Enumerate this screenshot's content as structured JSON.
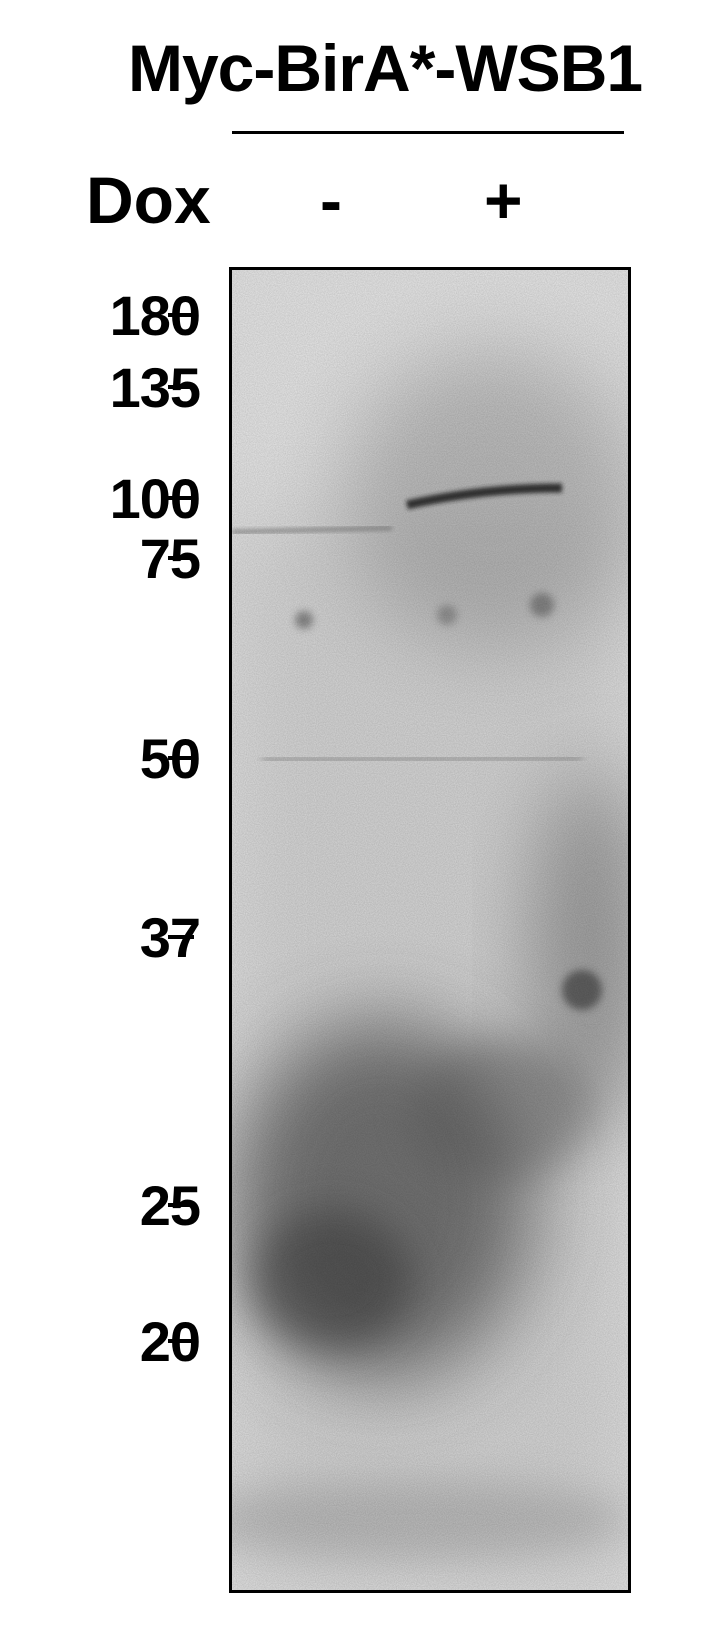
{
  "title": "Myc-BirA*-WSB1",
  "condition_label": "Dox",
  "lanes": [
    "-",
    "+"
  ],
  "markers": [
    "180",
    "135",
    "100",
    "75",
    "50",
    "37",
    "25",
    "20"
  ]
}
